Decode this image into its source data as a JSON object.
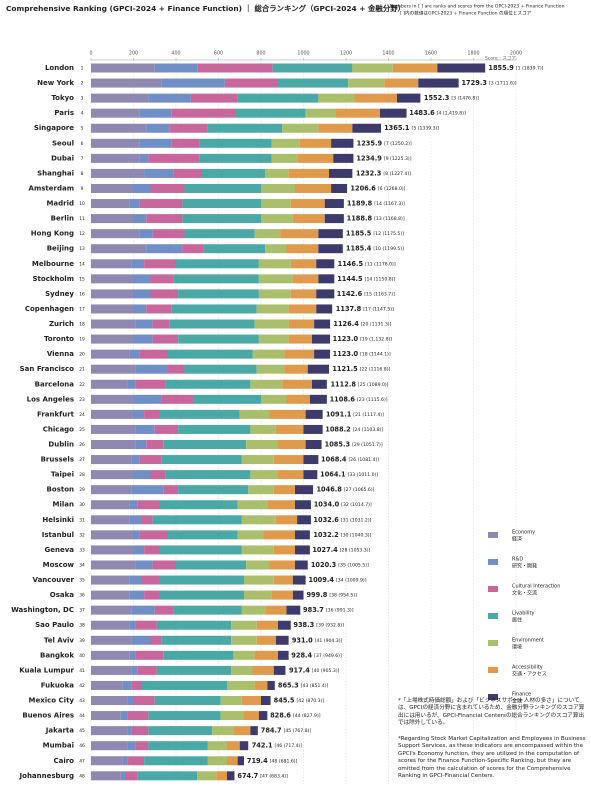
{
  "chart_data": {
    "type": "stacked_bar_horizontal",
    "title": "Comprehensive Ranking (GPCI-2024 + Finance Function) ｜ 総合ランキング（GPCI-2024 + 金融分野）",
    "subtitle": [
      "Numbers in [ ] are ranks and scores from the GPCI-2023 + Finance Function",
      "[ ]内の数値はGPCI-2023 + Finance Function の順位とスコア"
    ],
    "x_label": "Score : スコア",
    "xlim": [
      0,
      2000
    ],
    "xticks": [
      0,
      200,
      400,
      600,
      800,
      1000,
      1200,
      1400,
      1600,
      1800,
      2000
    ],
    "grid": true,
    "categories": [
      "London",
      "New York",
      "Tokyo",
      "Paris",
      "Singapore",
      "Seoul",
      "Dubai",
      "Shanghai",
      "Amsterdam",
      "Madrid",
      "Berlin",
      "Hong Kong",
      "Beijing",
      "Melbourne",
      "Stockholm",
      "Sydney",
      "Copenhagen",
      "Zurich",
      "Toronto",
      "Vienna",
      "San Francisco",
      "Barcelona",
      "Los Angeles",
      "Frankfurt",
      "Chicago",
      "Dublin",
      "Brussels",
      "Taipei",
      "Boston",
      "Milan",
      "Helsinki",
      "Istanbul",
      "Geneva",
      "Moscow",
      "Vancouver",
      "Osaka",
      "Washington, DC",
      "Sao Paulo",
      "Tel Aviv",
      "Bangkok",
      "Kuala Lumpur",
      "Fukuoka",
      "Mexico City",
      "Buenos Aires",
      "Jakarta",
      "Mumbai",
      "Cairo",
      "Johannesburg"
    ],
    "ranks": [
      1,
      2,
      3,
      4,
      5,
      6,
      7,
      8,
      9,
      10,
      11,
      12,
      13,
      14,
      15,
      16,
      17,
      18,
      19,
      20,
      21,
      22,
      23,
      24,
      25,
      26,
      27,
      28,
      29,
      30,
      31,
      32,
      33,
      34,
      35,
      36,
      37,
      38,
      39,
      40,
      41,
      42,
      43,
      44,
      45,
      46,
      47,
      48
    ],
    "totals": [
      1855.9,
      1729.3,
      1552.3,
      1483.6,
      1365.1,
      1235.9,
      1234.9,
      1232.3,
      1206.6,
      1189.8,
      1188.8,
      1185.5,
      1185.4,
      1146.5,
      1144.5,
      1142.6,
      1137.8,
      1126.4,
      1123.0,
      1123.0,
      1121.5,
      1112.8,
      1108.6,
      1091.1,
      1088.2,
      1085.3,
      1068.4,
      1064.1,
      1046.8,
      1034.0,
      1032.6,
      1032.2,
      1027.4,
      1020.3,
      1009.4,
      999.8,
      983.7,
      938.3,
      931.0,
      928.4,
      917.4,
      865.3,
      845.5,
      828.6,
      784.7,
      742.1,
      719.4,
      674.7
    ],
    "total_labels": [
      "1855.9",
      "1729.3",
      "1552.3",
      "1483.6",
      "1365.1",
      "1235.9",
      "1234.9",
      "1232.3",
      "1206.6",
      "1189.8",
      "1188.8",
      "1185.5",
      "1185.4",
      "1146.5",
      "1144.5",
      "1142.6",
      "1137.8",
      "1126.4",
      "1123.0",
      "1123.0",
      "1121.5",
      "1112.8",
      "1108.6",
      "1091.1",
      "1088.2",
      "1085.3",
      "1068.4",
      "1064.1",
      "1046.8",
      "1034.0",
      "1032.6",
      "1032.2",
      "1027.4",
      "1020.3",
      "1009.4",
      "999.8",
      "983.7",
      "938.3",
      "931.0",
      "928.4",
      "917.4",
      "865.3",
      "845.5",
      "828.6",
      "784.7",
      "742.1",
      "719.4",
      "674.7"
    ],
    "previous": [
      "[1 (1839.7)]",
      "[3 (1711.6)]",
      "[3 (1476.8)]",
      "[4 (1,419.8)]",
      "[5 (1339.3)]",
      "[7 (1250.2)]",
      "[9 (1225.3)]",
      "[8 (1227.4)]",
      "[6 (1268.0)]",
      "[14 (1167.3)]",
      "[13 (1168.8)]",
      "[12 (1175.5)]",
      "[10 (1199.5)]",
      "[11 (1178.0)]",
      "[14 (1150.8)]",
      "[15 (1163.7)]",
      "[17 (1147.5)]",
      "[20 (1131.3)]",
      "[19 (1,132.8)]",
      "[18 (1144.1)]",
      "[22 (1116.8)]",
      "[25 (1089.0)]",
      "[23 (1115.6)]",
      "[21 (1117.4)]",
      "[24 (1103.8)]",
      "[29 (1051.7)]",
      "[26 (1081.4)]",
      "[33 (1011.0)]",
      "[27 (1065.6)]",
      "[32 (1014.7)]",
      "[31 (1031.2)]",
      "[30 (1040.3)]",
      "[28 (1053.3)]",
      "[35 (1005.5)]",
      "[34 (1009.9)]",
      "[38 (954.5)]",
      "[36 (991.3)]",
      "[39 (932.8)]",
      "[41 (904.3)]",
      "[37 (949.6)]",
      "[40 (905.3)]",
      "[43 (851.4)]",
      "[42 (870.3)]",
      "[44 (827.9)]",
      "[45 (767.8)]",
      "[46 (717.4)]",
      "[48 (681.6)]",
      "[47 (683.4)]"
    ],
    "series": [
      {
        "name": "Economy",
        "name_ja": "経済",
        "color": "#8f88b0",
        "values": [
          300,
          330,
          270,
          230,
          260,
          230,
          230,
          250,
          200,
          180,
          200,
          230,
          260,
          190,
          200,
          200,
          200,
          210,
          200,
          180,
          210,
          170,
          200,
          200,
          210,
          210,
          190,
          200,
          190,
          180,
          180,
          200,
          200,
          210,
          180,
          180,
          190,
          180,
          190,
          180,
          190,
          150,
          170,
          140,
          170,
          170,
          150,
          140
        ]
      },
      {
        "name": "R&D",
        "name_ja": "研究・開発",
        "color": "#6f8fc6",
        "values": [
          200,
          300,
          200,
          150,
          110,
          150,
          40,
          140,
          80,
          50,
          60,
          60,
          170,
          60,
          80,
          80,
          60,
          80,
          90,
          50,
          150,
          40,
          130,
          50,
          90,
          50,
          40,
          80,
          150,
          40,
          60,
          30,
          50,
          80,
          60,
          70,
          110,
          30,
          90,
          30,
          30,
          40,
          30,
          30,
          20,
          40,
          20,
          20
        ]
      },
      {
        "name": "Cultural Interaction",
        "name_ja": "文化・交流",
        "color": "#c8679b",
        "values": [
          355,
          250,
          220,
          300,
          180,
          130,
          240,
          130,
          160,
          200,
          170,
          150,
          100,
          150,
          110,
          130,
          120,
          80,
          120,
          130,
          80,
          140,
          150,
          70,
          110,
          80,
          100,
          70,
          70,
          100,
          50,
          130,
          70,
          110,
          80,
          70,
          90,
          100,
          50,
          130,
          90,
          50,
          100,
          100,
          80,
          60,
          80,
          60
        ]
      },
      {
        "name": "Livability",
        "name_ja": "居住",
        "color": "#4aa9a6",
        "values": [
          375,
          330,
          380,
          330,
          350,
          340,
          340,
          300,
          360,
          370,
          370,
          330,
          290,
          390,
          400,
          380,
          400,
          400,
          380,
          400,
          340,
          400,
          320,
          380,
          340,
          390,
          380,
          400,
          330,
          370,
          420,
          330,
          390,
          330,
          400,
          400,
          320,
          350,
          330,
          330,
          350,
          400,
          310,
          340,
          300,
          280,
          300,
          280
        ]
      },
      {
        "name": "Environment",
        "name_ja": "環境",
        "color": "#a9bf6b",
        "values": [
          190,
          170,
          170,
          140,
          170,
          130,
          120,
          110,
          160,
          140,
          150,
          120,
          100,
          150,
          160,
          150,
          150,
          160,
          140,
          150,
          130,
          150,
          120,
          140,
          120,
          150,
          150,
          130,
          120,
          140,
          160,
          120,
          150,
          110,
          140,
          130,
          110,
          120,
          120,
          100,
          100,
          130,
          100,
          110,
          100,
          90,
          90,
          90
        ]
      },
      {
        "name": "Accessibility",
        "name_ja": "交通・アクセス",
        "color": "#e09a4b",
        "values": [
          210,
          160,
          200,
          210,
          160,
          150,
          170,
          190,
          170,
          160,
          150,
          180,
          150,
          120,
          120,
          120,
          130,
          120,
          110,
          140,
          110,
          140,
          110,
          170,
          130,
          130,
          140,
          120,
          100,
          130,
          100,
          150,
          100,
          120,
          90,
          100,
          100,
          100,
          90,
          110,
          100,
          60,
          90,
          70,
          80,
          60,
          50,
          50
        ]
      },
      {
        "name": "Finance",
        "name_ja": "金融",
        "color": "#3d3a6c",
        "values": [
          225,
          190,
          110,
          125,
          135,
          105,
          95,
          110,
          75,
          90,
          90,
          115,
          115,
          85,
          75,
          85,
          75,
          75,
          85,
          75,
          100,
          70,
          80,
          80,
          90,
          75,
          70,
          65,
          85,
          75,
          65,
          70,
          70,
          60,
          60,
          50,
          65,
          60,
          60,
          50,
          55,
          35,
          45,
          40,
          35,
          40,
          30,
          35
        ]
      }
    ],
    "footnotes": [
      "*「上場株式時価総額」および「ビジネスサポート人材の多さ」については、GPCIの経済分野に含まれているため、金融分野ランキングのスコア算出には用いるが、GPCI-Financial Centersの総合ランキングのスコア算出では除外している。",
      "*Regarding Stock Market Capitalization and Employees in Business Support Services, as these indicators are encompassed within the GPCI's Economy function, they are utilized in the computation of scores for the Finance Function-Specific Ranking, but they are omitted from the calculation of scores for the Comprehensive Ranking in GPCI-Financial Centers."
    ]
  }
}
